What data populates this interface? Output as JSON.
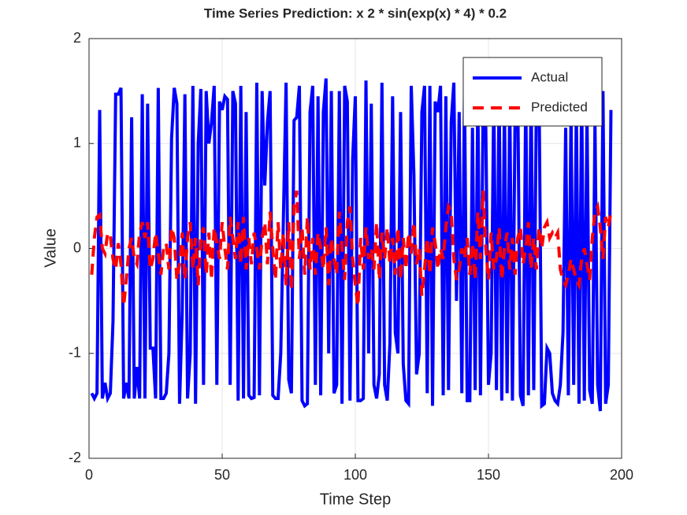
{
  "chart_data": {
    "type": "line",
    "title": "Time Series Prediction: x  2 * sin(exp(x) * 4) * 0.2",
    "xlabel": "Time Step",
    "ylabel": "Value",
    "xlim": [
      0,
      200
    ],
    "ylim": [
      -2,
      2
    ],
    "xticks": [
      0,
      50,
      100,
      150,
      200
    ],
    "yticks": [
      -2,
      -1,
      0,
      1,
      2
    ],
    "grid": true,
    "legend": "northeast",
    "x": [
      1,
      2,
      3,
      4,
      5,
      6,
      7,
      8,
      9,
      10,
      11,
      12,
      13,
      14,
      15,
      16,
      17,
      18,
      19,
      20,
      21,
      22,
      23,
      24,
      25,
      26,
      27,
      28,
      29,
      30,
      31,
      32,
      33,
      34,
      35,
      36,
      37,
      38,
      39,
      40,
      41,
      42,
      43,
      44,
      45,
      46,
      47,
      48,
      49,
      50,
      51,
      52,
      53,
      54,
      55,
      56,
      57,
      58,
      59,
      60,
      61,
      62,
      63,
      64,
      65,
      66,
      67,
      68,
      69,
      70,
      71,
      72,
      73,
      74,
      75,
      76,
      77,
      78,
      79,
      80,
      81,
      82,
      83,
      84,
      85,
      86,
      87,
      88,
      89,
      90,
      91,
      92,
      93,
      94,
      95,
      96,
      97,
      98,
      99,
      100,
      101,
      102,
      103,
      104,
      105,
      106,
      107,
      108,
      109,
      110,
      111,
      112,
      113,
      114,
      115,
      116,
      117,
      118,
      119,
      120,
      121,
      122,
      123,
      124,
      125,
      126,
      127,
      128,
      129,
      130,
      131,
      132,
      133,
      134,
      135,
      136,
      137,
      138,
      139,
      140,
      141,
      142,
      143,
      144,
      145,
      146,
      147,
      148,
      149,
      150,
      151,
      152,
      153,
      154,
      155,
      156,
      157,
      158,
      159,
      160,
      161,
      162,
      163,
      164,
      165,
      166,
      167,
      168,
      169,
      170,
      171,
      172,
      173,
      174,
      175,
      176,
      177,
      178,
      179,
      180,
      181,
      182,
      183,
      184,
      185,
      186,
      187,
      188,
      189,
      190,
      191,
      192,
      193,
      194,
      195,
      196
    ],
    "series": [
      {
        "name": "Actual",
        "color": "#0000ff",
        "line_style": "solid",
        "values": [
          -1.38,
          -1.43,
          -1.38,
          1.32,
          -1.43,
          -1.28,
          -1.43,
          -1.38,
          -0.7,
          1.47,
          1.47,
          1.53,
          -1.43,
          -1.28,
          -1.43,
          1.25,
          -1.43,
          -1.13,
          -1.43,
          1.47,
          -1.43,
          1.38,
          -0.95,
          -0.95,
          -1.43,
          1.53,
          -1.43,
          -1.43,
          -1.38,
          -1.0,
          1.05,
          1.53,
          1.38,
          -1.48,
          -0.6,
          1.47,
          -1.43,
          -1.0,
          1.55,
          -1.48,
          1.0,
          1.52,
          -1.3,
          1.5,
          1.0,
          1.2,
          1.55,
          -1.3,
          1.4,
          1.32,
          1.45,
          1.42,
          -1.3,
          1.5,
          1.38,
          -1.45,
          1.55,
          -1.43,
          1.3,
          -1.4,
          -1.43,
          -1.42,
          1.58,
          -1.4,
          1.5,
          0.6,
          1.2,
          1.5,
          -1.4,
          -1.43,
          -1.43,
          -1.0,
          0.3,
          1.58,
          -1.25,
          -1.38,
          1.22,
          1.25,
          1.55,
          -1.45,
          -1.5,
          -1.48,
          1.3,
          1.55,
          -1.3,
          1.45,
          -1.4,
          1.3,
          1.62,
          -1.0,
          1.5,
          -1.38,
          -1.3,
          1.5,
          -1.48,
          1.55,
          1.4,
          -1.45,
          0.85,
          1.45,
          -1.45,
          -1.45,
          -1.43,
          1.6,
          -1.0,
          1.38,
          -1.3,
          -1.43,
          -1.2,
          1.58,
          -1.3,
          -1.45,
          -0.9,
          1.45,
          -0.8,
          -1.0,
          1.3,
          -1.1,
          -1.45,
          -1.48,
          1.55,
          0.7,
          -1.2,
          -1.0,
          1.3,
          1.55,
          -1.38,
          1.55,
          -1.5,
          1.4,
          1.3,
          1.55,
          -1.4,
          1.45,
          -1.35,
          1.2,
          1.58,
          -0.5,
          1.3,
          -1.38,
          1.55,
          -1.45,
          -1.45,
          1.15,
          -1.35,
          1.5,
          -1.4,
          1.38,
          1.15,
          -1.3,
          -1.0,
          1.5,
          -1.35,
          1.55,
          -1.45,
          1.4,
          -1.38,
          1.45,
          -1.45,
          1.3,
          1.5,
          -1.4,
          -1.5,
          1.5,
          -1.4,
          1.55,
          -1.35,
          1.45,
          1.5,
          -1.5,
          -1.48,
          -0.95,
          -1.0,
          -1.38,
          -1.45,
          -1.48,
          -1.3,
          -0.8,
          1.15,
          -1.4,
          1.3,
          -1.3,
          1.35,
          -1.48,
          1.5,
          -1.45,
          1.3,
          -1.35,
          -1.48,
          1.2,
          -1.3,
          -1.55,
          1.5,
          -1.48,
          -1.3,
          1.32
        ]
      },
      {
        "name": "Predicted",
        "color": "#ff0000",
        "line_style": "dashed",
        "values": [
          -0.25,
          0.1,
          0.3,
          0.32,
          0.0,
          -0.05,
          0.15,
          0.12,
          -0.1,
          -0.2,
          0.05,
          -0.15,
          -0.55,
          -0.3,
          0.0,
          0.1,
          -0.1,
          -0.15,
          0.15,
          0.25,
          0.1,
          0.25,
          -0.2,
          -0.1,
          0.15,
          -0.05,
          -0.25,
          0.0,
          0.05,
          -0.2,
          0.2,
          0.1,
          -0.3,
          -0.15,
          0.15,
          -0.3,
          0.1,
          0.25,
          -0.2,
          0.1,
          -0.35,
          0.1,
          0.2,
          -0.25,
          0.15,
          -0.3,
          0.2,
          0.05,
          -0.1,
          0.25,
          0.0,
          -0.2,
          0.3,
          0.1,
          -0.1,
          0.25,
          -0.15,
          0.3,
          -0.2,
          0.1,
          -0.15,
          0.15,
          0.0,
          -0.2,
          0.1,
          0.25,
          -0.15,
          0.35,
          0.0,
          -0.3,
          0.25,
          -0.2,
          0.15,
          -0.35,
          0.25,
          -0.4,
          0.4,
          0.55,
          -0.1,
          0.2,
          -0.25,
          0.3,
          -0.2,
          0.1,
          -0.25,
          0.15,
          0.0,
          -0.2,
          0.2,
          -0.35,
          0.1,
          -0.1,
          -0.25,
          0.35,
          0.0,
          -0.3,
          0.25,
          0.4,
          -0.1,
          -0.35,
          -0.55,
          0.1,
          -0.2,
          0.2,
          -0.1,
          0.0,
          -0.2,
          0.25,
          -0.3,
          0.15,
          -0.1,
          0.2,
          -0.15,
          0.1,
          -0.25,
          0.2,
          -0.3,
          0.1,
          -0.2,
          0.15,
          -0.05,
          0.25,
          -0.15,
          0.0,
          -0.45,
          -0.2,
          0.1,
          -0.25,
          0.2,
          0.05,
          -0.2,
          0.0,
          -0.1,
          0.2,
          0.4,
          0.35,
          -0.1,
          -0.3,
          -0.2,
          0.0,
          -0.1,
          0.1,
          -0.25,
          0.05,
          -0.3,
          0.35,
          -0.1,
          0.55,
          0.0,
          -0.3,
          0.15,
          -0.2,
          -0.1,
          0.2,
          -0.3,
          0.0,
          0.15,
          -0.2,
          0.1,
          -0.25,
          0.1,
          0.2,
          -0.15,
          0.0,
          0.25,
          -0.2,
          0.1,
          -0.2,
          0.2,
          0.0,
          0.2,
          0.25,
          0.1,
          0.15,
          0.1,
          0.15,
          -0.2,
          -0.3,
          -0.35,
          -0.25,
          -0.1,
          -0.2,
          -0.3,
          -0.35,
          -0.1,
          0.0,
          -0.15,
          -0.3,
          0.1,
          0.35,
          0.4,
          0.2,
          -0.1,
          0.3,
          0.2,
          0.35
        ]
      }
    ]
  }
}
